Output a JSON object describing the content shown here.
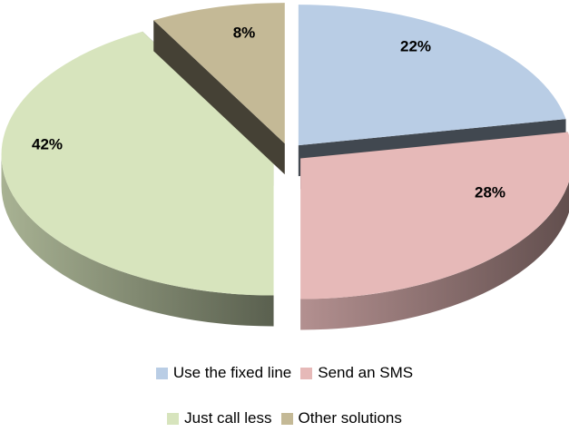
{
  "chart_data": {
    "type": "pie",
    "title": "",
    "slices": [
      {
        "label": "Use the fixed line",
        "value": 22,
        "display": "22%",
        "color": "#b9cde5"
      },
      {
        "label": "Send an SMS",
        "value": 28,
        "display": "28%",
        "color": "#e6b9b8"
      },
      {
        "label": "Just call less",
        "value": 42,
        "display": "42%",
        "color": "#d7e4bd"
      },
      {
        "label": "Other solutions",
        "value": 8,
        "display": "8%",
        "color": "#c4b996"
      }
    ],
    "style": "3d-exploded",
    "legend_position": "bottom"
  }
}
